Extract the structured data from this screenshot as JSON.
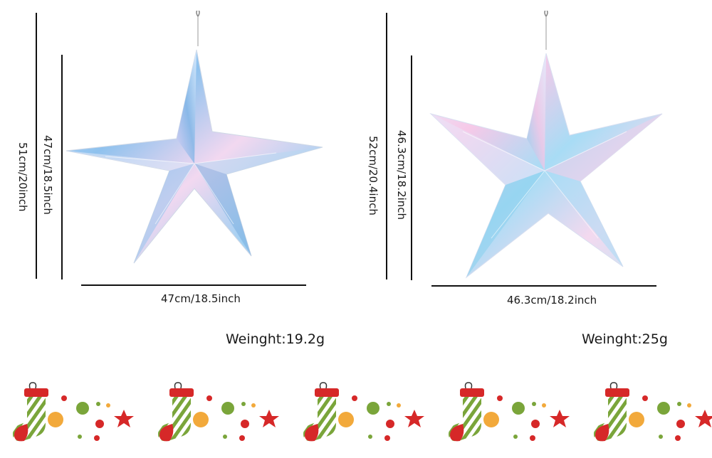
{
  "product_left": {
    "outer_height_label": "51cm/20inch",
    "inner_height_label": "47cm/18.5inch",
    "width_label": "47cm/18.5inch",
    "weight_label": "Weinght:19.2g"
  },
  "product_right": {
    "outer_height_label": "52cm/20.4inch",
    "inner_height_label": "46.3cm/18.2inch",
    "width_label": "46.3cm/18.2inch",
    "weight_label": "Weinght:25g"
  },
  "colors": {
    "stocking_red": "#d62828",
    "stocking_green": "#7aa53a",
    "dot_orange": "#f2a93b",
    "dot_green": "#7aa53a",
    "dot_red": "#d62828"
  }
}
